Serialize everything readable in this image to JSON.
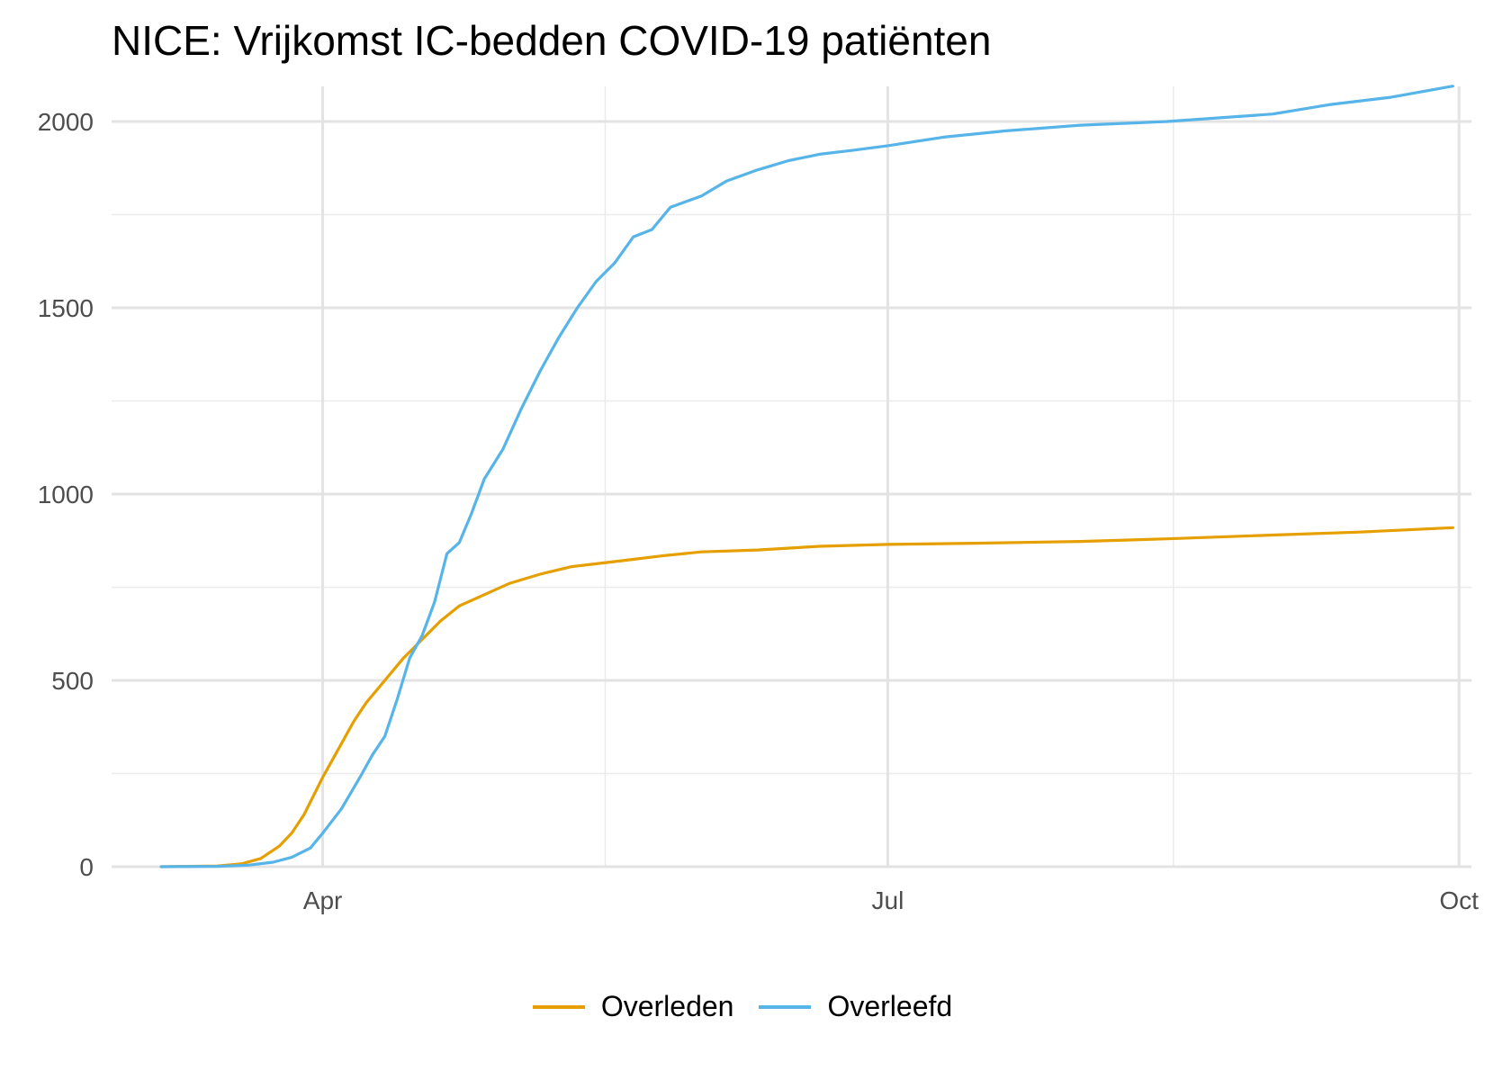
{
  "chart_data": {
    "type": "line",
    "title": "NICE: Vrijkomst IC-bedden COVID-19 patiënten",
    "xlabel": "",
    "ylabel": "",
    "x_range": [
      "2020-02-27",
      "2020-10-03"
    ],
    "ylim": [
      0,
      2100
    ],
    "y_ticks": [
      0,
      500,
      1000,
      1500,
      2000
    ],
    "x_ticks": [
      {
        "date": "2020-04-01",
        "label": "Apr"
      },
      {
        "date": "2020-07-01",
        "label": "Jul"
      },
      {
        "date": "2020-10-01",
        "label": "Oct"
      }
    ],
    "grid": true,
    "legend_position": "bottom",
    "series": [
      {
        "name": "Overleden",
        "color": "#E69F00",
        "points": [
          [
            "2020-03-06",
            0
          ],
          [
            "2020-03-15",
            2
          ],
          [
            "2020-03-19",
            8
          ],
          [
            "2020-03-22",
            22
          ],
          [
            "2020-03-25",
            55
          ],
          [
            "2020-03-27",
            90
          ],
          [
            "2020-03-29",
            140
          ],
          [
            "2020-04-01",
            240
          ],
          [
            "2020-04-03",
            300
          ],
          [
            "2020-04-06",
            390
          ],
          [
            "2020-04-08",
            440
          ],
          [
            "2020-04-11",
            500
          ],
          [
            "2020-04-14",
            560
          ],
          [
            "2020-04-17",
            610
          ],
          [
            "2020-04-20",
            660
          ],
          [
            "2020-04-23",
            700
          ],
          [
            "2020-04-27",
            730
          ],
          [
            "2020-05-01",
            760
          ],
          [
            "2020-05-06",
            785
          ],
          [
            "2020-05-11",
            805
          ],
          [
            "2020-05-16",
            815
          ],
          [
            "2020-05-21",
            825
          ],
          [
            "2020-05-26",
            835
          ],
          [
            "2020-06-01",
            845
          ],
          [
            "2020-06-10",
            850
          ],
          [
            "2020-06-20",
            860
          ],
          [
            "2020-07-01",
            865
          ],
          [
            "2020-07-15",
            868
          ],
          [
            "2020-08-01",
            873
          ],
          [
            "2020-08-15",
            880
          ],
          [
            "2020-09-01",
            890
          ],
          [
            "2020-09-15",
            898
          ],
          [
            "2020-09-30",
            910
          ]
        ]
      },
      {
        "name": "Overleefd",
        "color": "#56B4E9",
        "points": [
          [
            "2020-03-06",
            0
          ],
          [
            "2020-03-15",
            1
          ],
          [
            "2020-03-20",
            4
          ],
          [
            "2020-03-24",
            12
          ],
          [
            "2020-03-27",
            25
          ],
          [
            "2020-03-30",
            50
          ],
          [
            "2020-04-01",
            90
          ],
          [
            "2020-04-04",
            155
          ],
          [
            "2020-04-07",
            240
          ],
          [
            "2020-04-09",
            300
          ],
          [
            "2020-04-11",
            350
          ],
          [
            "2020-04-13",
            450
          ],
          [
            "2020-04-15",
            560
          ],
          [
            "2020-04-17",
            620
          ],
          [
            "2020-04-19",
            710
          ],
          [
            "2020-04-21",
            840
          ],
          [
            "2020-04-23",
            870
          ],
          [
            "2020-04-25",
            950
          ],
          [
            "2020-04-27",
            1040
          ],
          [
            "2020-04-30",
            1120
          ],
          [
            "2020-05-03",
            1230
          ],
          [
            "2020-05-06",
            1330
          ],
          [
            "2020-05-09",
            1420
          ],
          [
            "2020-05-12",
            1500
          ],
          [
            "2020-05-15",
            1570
          ],
          [
            "2020-05-18",
            1620
          ],
          [
            "2020-05-21",
            1690
          ],
          [
            "2020-05-24",
            1710
          ],
          [
            "2020-05-27",
            1770
          ],
          [
            "2020-06-01",
            1800
          ],
          [
            "2020-06-05",
            1840
          ],
          [
            "2020-06-10",
            1870
          ],
          [
            "2020-06-15",
            1895
          ],
          [
            "2020-06-20",
            1912
          ],
          [
            "2020-06-25",
            1922
          ],
          [
            "2020-07-01",
            1935
          ],
          [
            "2020-07-10",
            1958
          ],
          [
            "2020-07-20",
            1975
          ],
          [
            "2020-08-01",
            1990
          ],
          [
            "2020-08-15",
            2000
          ],
          [
            "2020-09-01",
            2020
          ],
          [
            "2020-09-10",
            2045
          ],
          [
            "2020-09-20",
            2065
          ],
          [
            "2020-09-30",
            2095
          ]
        ]
      }
    ]
  }
}
